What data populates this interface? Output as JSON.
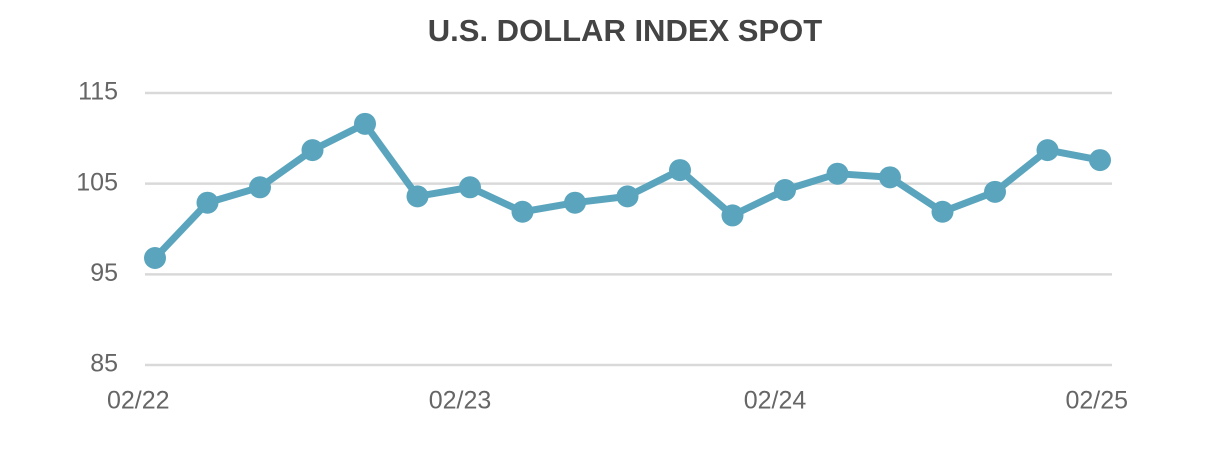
{
  "chart_data": {
    "type": "line",
    "title": "U.S. DOLLAR INDEX  SPOT",
    "categories": [
      "02/22",
      null,
      null,
      null,
      null,
      null,
      "02/23",
      null,
      null,
      null,
      null,
      null,
      "02/24",
      null,
      null,
      null,
      null,
      null,
      "02/25"
    ],
    "series": [
      {
        "name": "U.S. Dollar Index Spot",
        "color": "#5aa5bd",
        "values": [
          96.8,
          102.9,
          104.6,
          108.7,
          111.6,
          103.6,
          104.6,
          101.9,
          102.9,
          103.6,
          106.5,
          101.5,
          104.3,
          106.1,
          105.7,
          101.9,
          104.1,
          108.7,
          107.6
        ]
      }
    ],
    "ylim": [
      85,
      115
    ],
    "yticks": [
      85,
      95,
      105,
      115
    ],
    "grid": true
  }
}
